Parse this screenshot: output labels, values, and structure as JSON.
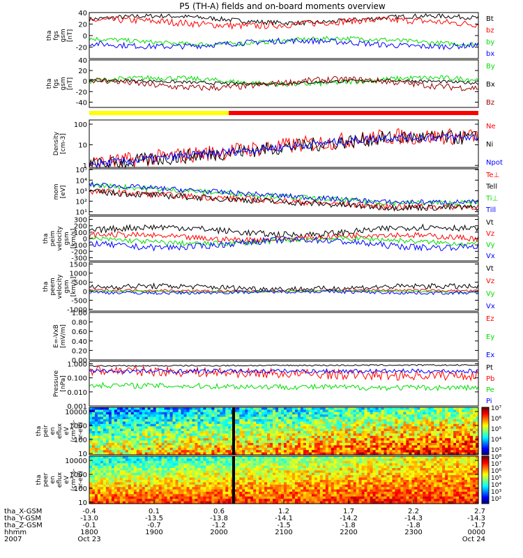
{
  "title": "P5 (TH-A) fields and on-board moments overview",
  "colors": {
    "black": "#000000",
    "red": "#ff0000",
    "green": "#00dd00",
    "blue": "#0000ff",
    "darkred": "#990000",
    "yellow": "#ffff00"
  },
  "chart_data": [
    {
      "type": "line",
      "panel": "fgs-gsm",
      "ylabel_lines": [
        "tha",
        "fgs",
        "gsm",
        "[nT]"
      ],
      "ylim": [
        -40,
        40
      ],
      "yticks": [
        -20,
        0,
        20,
        40
      ],
      "series": [
        {
          "name": "Bt",
          "color": "black",
          "base": 28,
          "amp": 6,
          "noise": 4
        },
        {
          "name": "bz",
          "color": "red",
          "base": 22,
          "amp": 5,
          "noise": 6
        },
        {
          "name": "by",
          "color": "green",
          "base": -10,
          "amp": 5,
          "noise": 4
        },
        {
          "name": "bx",
          "color": "blue",
          "base": -14,
          "amp": 5,
          "noise": 5
        }
      ]
    },
    {
      "type": "line",
      "panel": "fgs-gsm-2",
      "ylabel_lines": [
        "tha",
        "fgs",
        "gsm",
        "[nT]"
      ],
      "ylim": [
        -50,
        40
      ],
      "yticks": [
        -40,
        -20,
        0,
        20,
        40
      ],
      "series": [
        {
          "name": "By",
          "color": "green",
          "base": 0,
          "amp": 6,
          "noise": 5
        },
        {
          "name": "Bx",
          "color": "black",
          "base": -2,
          "amp": 3,
          "noise": 3
        },
        {
          "name": "Bz",
          "color": "darkred",
          "base": -5,
          "amp": 8,
          "noise": 6
        }
      ]
    },
    {
      "type": "line",
      "panel": "density",
      "ylabel_lines": [
        "Density",
        "[cm-3]"
      ],
      "scale": "log",
      "ylim": [
        0.8,
        160
      ],
      "ytick_labels": [
        "1",
        "10",
        "100"
      ],
      "ytick_values": [
        1,
        10,
        100
      ],
      "series": [
        {
          "name": "Ne",
          "color": "red",
          "start": 1.2,
          "end": 25,
          "noise": 0.4
        },
        {
          "name": "Ni",
          "color": "black",
          "start": 1.0,
          "end": 22,
          "noise": 0.35
        },
        {
          "name": "Npot",
          "color": "blue",
          "start": 1.1,
          "end": 23,
          "noise": 0.2
        }
      ]
    },
    {
      "type": "line",
      "panel": "temperature",
      "ylabel_lines": [
        "mom",
        "[eV]"
      ],
      "scale": "log",
      "ylim": [
        5,
        120000
      ],
      "ytick_labels": [
        "10¹",
        "10²",
        "10³",
        "10⁴",
        "10⁵"
      ],
      "ytick_values": [
        10,
        100,
        1000,
        10000,
        100000
      ],
      "series": [
        {
          "name": "Te⊥",
          "color": "red",
          "start": 900,
          "end": 30,
          "noise": 0.3
        },
        {
          "name": "Tell",
          "color": "black",
          "start": 800,
          "end": 25,
          "noise": 0.3
        },
        {
          "name": "Ti⊥",
          "color": "green",
          "start": 3500,
          "end": 70,
          "noise": 0.25
        },
        {
          "name": "Till",
          "color": "blue",
          "start": 4000,
          "end": 80,
          "noise": 0.25
        }
      ]
    },
    {
      "type": "line",
      "panel": "peim-velocity",
      "ylabel_lines": [
        "tha",
        "peim",
        "velocity",
        "gsm",
        "[km/s]"
      ],
      "ylim": [
        -350,
        350
      ],
      "yticks": [
        -300,
        -200,
        -100,
        0,
        100,
        200,
        300
      ],
      "series": [
        {
          "name": "Vt",
          "color": "black",
          "base": 120,
          "amp": 60,
          "noise": 50
        },
        {
          "name": "Vz",
          "color": "red",
          "base": 20,
          "amp": 40,
          "noise": 45
        },
        {
          "name": "Vy",
          "color": "green",
          "base": -40,
          "amp": 40,
          "noise": 40
        },
        {
          "name": "Vx",
          "color": "blue",
          "base": -80,
          "amp": 60,
          "noise": 50
        }
      ]
    },
    {
      "type": "line",
      "panel": "peem-velocity",
      "ylabel_lines": [
        "tha",
        "peem",
        "velocity",
        "gsm",
        "[km/s]"
      ],
      "ylim": [
        -1100,
        1600
      ],
      "yticks": [
        -1000,
        -500,
        0,
        500,
        1000,
        1500
      ],
      "series": [
        {
          "name": "Vt",
          "color": "black",
          "base": 200,
          "amp": 80,
          "noise": 150
        },
        {
          "name": "Vz",
          "color": "red",
          "base": 30,
          "amp": 30,
          "noise": 60
        },
        {
          "name": "Vy",
          "color": "green",
          "base": -20,
          "amp": 30,
          "noise": 50
        },
        {
          "name": "Vx",
          "color": "blue",
          "base": -60,
          "amp": 40,
          "noise": 90
        }
      ]
    },
    {
      "type": "line",
      "panel": "efield",
      "ylabel_lines": [
        "E=-VxB",
        "[mV/m]"
      ],
      "ylim": [
        0,
        1
      ],
      "yticks": [
        0.0,
        0.2,
        0.4,
        0.6,
        0.8,
        1.0
      ],
      "ytick_labels": [
        "0.00",
        "0.20",
        "0.40",
        "0.60",
        "0.80",
        "1.00"
      ],
      "series": [
        {
          "name": "Ez",
          "color": "red"
        },
        {
          "name": "Ey",
          "color": "green"
        },
        {
          "name": "Ex",
          "color": "blue"
        }
      ]
    },
    {
      "type": "line",
      "panel": "pressure",
      "ylabel_lines": [
        "Pressure",
        "[nPa]"
      ],
      "scale": "log",
      "ylim": [
        0.001,
        1.5
      ],
      "ytick_labels": [
        "0.001",
        "0.010",
        "0.100",
        "1.000"
      ],
      "ytick_values": [
        0.001,
        0.01,
        0.1,
        1
      ],
      "series": [
        {
          "name": "Pt",
          "color": "black",
          "start": 0.7,
          "end": 0.8,
          "noise": 0.05
        },
        {
          "name": "Pb",
          "color": "red",
          "start": 0.35,
          "end": 0.15,
          "noise": 0.35
        },
        {
          "name": "Pe",
          "color": "green",
          "start": 0.03,
          "end": 0.02,
          "noise": 0.2
        },
        {
          "name": "Pi",
          "color": "blue",
          "start": 0.3,
          "end": 0.3,
          "noise": 0.15
        }
      ]
    },
    {
      "type": "heatmap",
      "panel": "peir-spectrogram",
      "ylabel_lines": [
        "tha",
        "peir",
        "en",
        "eflux",
        "eV",
        "(cm²-s-",
        "sr-eV)"
      ],
      "scale": "log",
      "ylim": [
        8,
        20000
      ],
      "ytick_labels": [
        "10",
        "100",
        "1000",
        "10000"
      ],
      "ytick_values": [
        10,
        100,
        1000,
        10000
      ],
      "colorbar_labels": [
        "10³",
        "10⁴",
        "10⁵",
        "10⁶",
        "10⁷"
      ]
    },
    {
      "type": "heatmap",
      "panel": "peer-spectrogram",
      "ylabel_lines": [
        "tha",
        "peer",
        "en",
        "eflux",
        "eV",
        "(cm²-s-",
        "sr-eV)"
      ],
      "scale": "log",
      "ylim": [
        8,
        20000
      ],
      "ytick_labels": [
        "10",
        "100",
        "1000",
        "10000"
      ],
      "ytick_values": [
        10,
        100,
        1000,
        10000
      ],
      "colorbar_labels": [
        "10²",
        "10³",
        "10⁴",
        "10⁵",
        "10⁶",
        "10⁷",
        "10⁸"
      ]
    }
  ],
  "xaxis": {
    "row_labels": [
      "tha_X-GSM",
      "tha_Y-GSM",
      "tha_Z-GSM",
      "hhmm",
      "2007"
    ],
    "ticks": [
      {
        "x": "-0.4",
        "y": "-13.0",
        "z": "-0.1",
        "hhmm": "1800",
        "date": "Oct 23"
      },
      {
        "x": "0.1",
        "y": "-13.5",
        "z": "-0.7",
        "hhmm": "1900",
        "date": ""
      },
      {
        "x": "0.6",
        "y": "-13.8",
        "z": "-1.2",
        "hhmm": "2000",
        "date": ""
      },
      {
        "x": "1.2",
        "y": "-14.1",
        "z": "-1.5",
        "hhmm": "2100",
        "date": ""
      },
      {
        "x": "1.7",
        "y": "-14.2",
        "z": "-1.8",
        "hhmm": "2200",
        "date": ""
      },
      {
        "x": "2.2",
        "y": "-14.3",
        "z": "-1.8",
        "hhmm": "2300",
        "date": ""
      },
      {
        "x": "2.7",
        "y": "-14.3",
        "z": "-1.7",
        "hhmm": "0000",
        "date": "Oct 24"
      }
    ]
  }
}
